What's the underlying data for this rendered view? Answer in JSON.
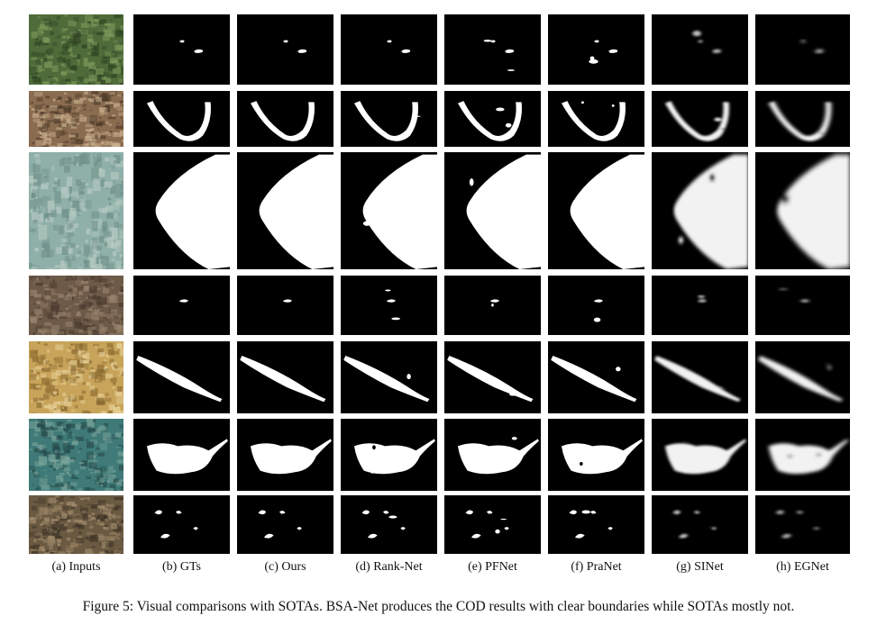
{
  "columns": [
    {
      "key": "inputs",
      "label": "(a) Inputs"
    },
    {
      "key": "gts",
      "label": "(b) GTs"
    },
    {
      "key": "ours",
      "label": "(c) Ours"
    },
    {
      "key": "ranknet",
      "label": "(d) Rank-Net"
    },
    {
      "key": "pfnet",
      "label": "(e) PFNet"
    },
    {
      "key": "pranet",
      "label": "(f) PraNet"
    },
    {
      "key": "sinet",
      "label": "(g) SINet"
    },
    {
      "key": "egnet",
      "label": "(h) EGNet"
    }
  ],
  "rows": [
    {
      "subject": "grass-leaf-spots",
      "input_colors": [
        "#4f6b3a",
        "#7f9a5c",
        "#2e4222"
      ]
    },
    {
      "subject": "pipefish-u-shape",
      "input_colors": [
        "#8a6c50",
        "#c9b08e",
        "#4a3826"
      ]
    },
    {
      "subject": "stingray-sand",
      "input_colors": [
        "#8fb0a8",
        "#b9ccc4",
        "#6e8e88"
      ]
    },
    {
      "subject": "small-crab-soil",
      "input_colors": [
        "#6e5a48",
        "#9a8570",
        "#4a3b2e"
      ]
    },
    {
      "subject": "pipefish-coral",
      "input_colors": [
        "#c8a45a",
        "#e8d29a",
        "#8a6a30"
      ]
    },
    {
      "subject": "stingray-reef",
      "input_colors": [
        "#3f7a78",
        "#7aa49a",
        "#254a4a"
      ]
    },
    {
      "subject": "crabs-gravel",
      "input_colors": [
        "#6a5a42",
        "#a89070",
        "#3e3426"
      ]
    }
  ],
  "caption": "Figure 5: Visual comparisons with SOTAs. BSA-Net produces the COD results with clear boundaries while SOTAs mostly not."
}
